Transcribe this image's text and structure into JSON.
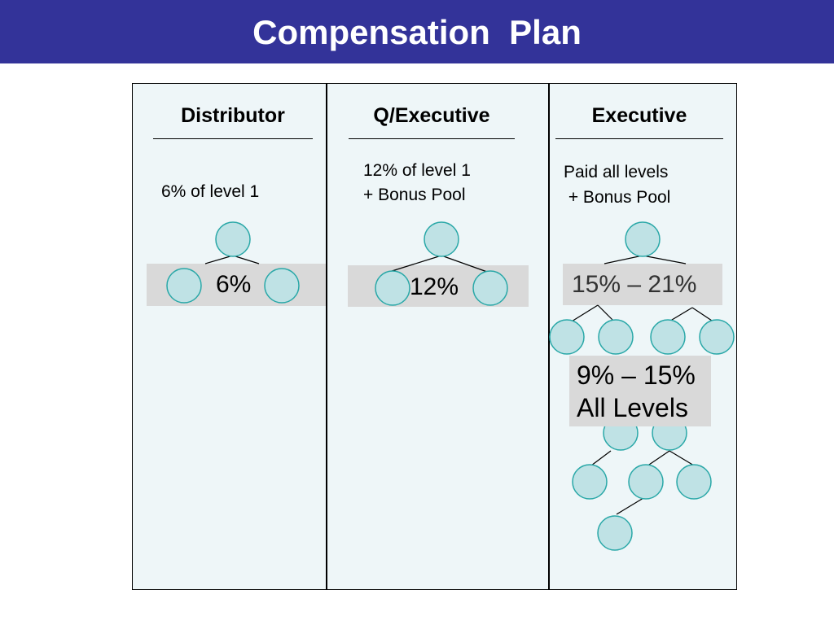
{
  "header": {
    "title": "Compensation  Plan"
  },
  "columns": [
    {
      "title": "Distributor",
      "desc_lines": [
        "6% of level 1"
      ],
      "rate": "6%"
    },
    {
      "title": "Q/Executive",
      "desc_lines": [
        "12% of level 1",
        "+ Bonus Pool"
      ],
      "rate": "12%"
    },
    {
      "title": "Executive",
      "desc_lines": [
        "Paid all levels",
        " + Bonus Pool"
      ],
      "rate": "15% – 21%",
      "deep_rate_line1": "9% – 15%",
      "deep_rate_line2": "All Levels"
    }
  ],
  "colors": {
    "banner": "#333399",
    "panel": "#eef6f8",
    "node_fill": "#bfe2e5",
    "node_stroke": "#2aa8a8",
    "label_box": "#d9d9d9"
  }
}
